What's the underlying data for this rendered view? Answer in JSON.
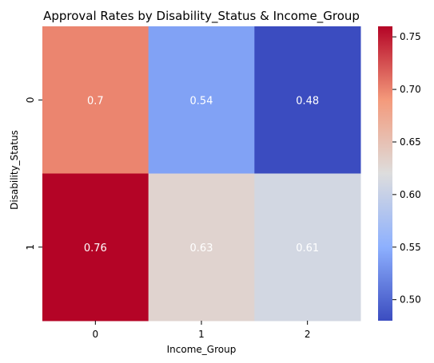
{
  "chart_data": {
    "type": "heatmap",
    "title": "Approval Rates by Disability_Status & Income_Group",
    "xlabel": "Income_Group",
    "ylabel": "Disability_Status",
    "x_categories": [
      "0",
      "1",
      "2"
    ],
    "y_categories": [
      "0",
      "1"
    ],
    "values": [
      [
        0.7,
        0.54,
        0.48
      ],
      [
        0.76,
        0.63,
        0.61
      ]
    ],
    "cell_labels": [
      [
        "0.7",
        "0.54",
        "0.48"
      ],
      [
        "0.76",
        "0.63",
        "0.61"
      ]
    ],
    "colormap": "coolwarm",
    "colorbar": {
      "range": [
        0.48,
        0.76
      ],
      "ticks": [
        0.5,
        0.55,
        0.6,
        0.65,
        0.7,
        0.75
      ],
      "tick_labels": [
        "0.50",
        "0.55",
        "0.60",
        "0.65",
        "0.70",
        "0.75"
      ]
    }
  }
}
